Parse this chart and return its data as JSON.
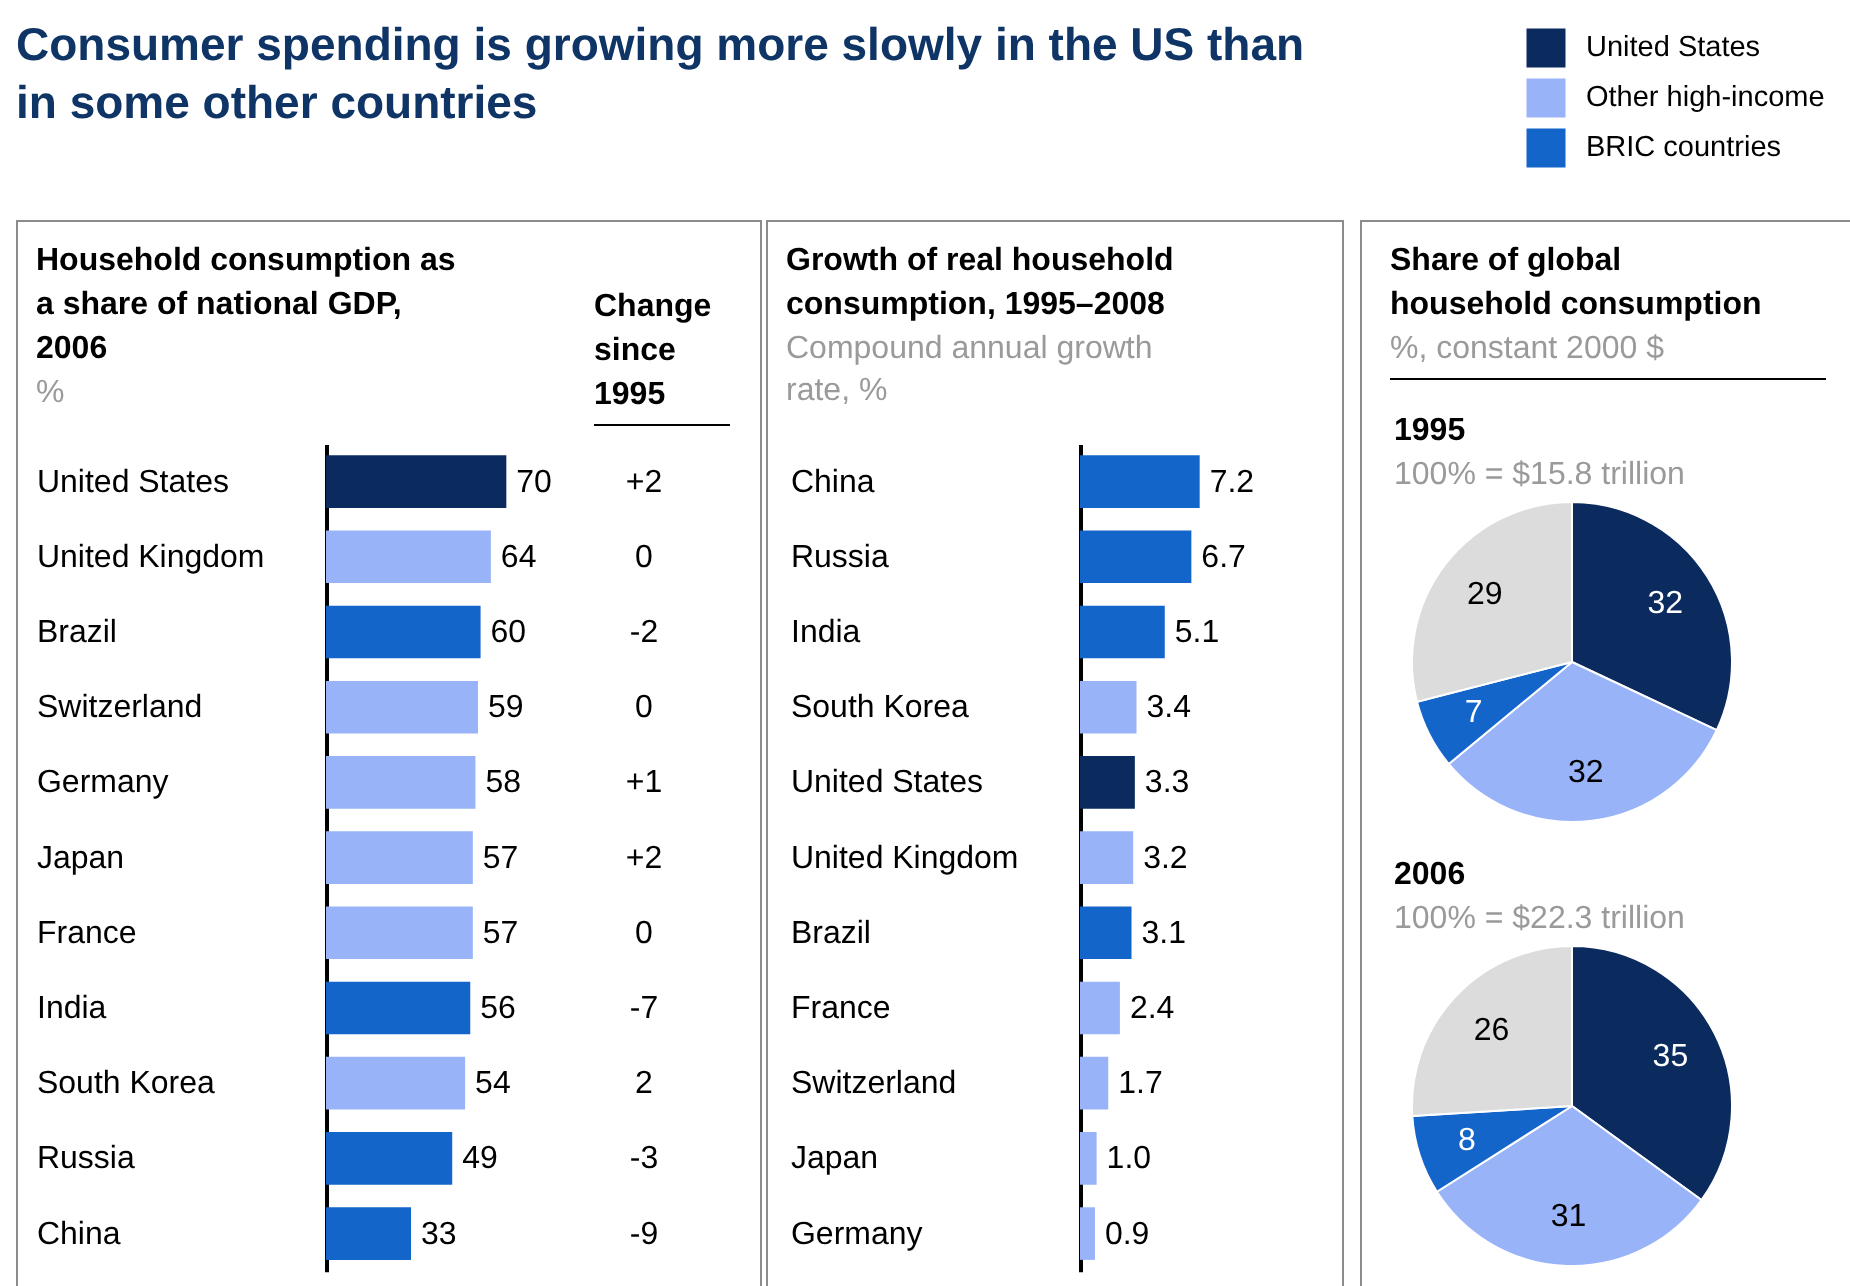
{
  "chart_data": [
    {
      "type": "other",
      "title": "Consumer spending is growing more slowly in the US than in some other countries"
    },
    {
      "type": "bar",
      "orientation": "horizontal",
      "title": "Household consumption as a share of national GDP, 2006",
      "subtitle": "%",
      "categories": [
        "United States",
        "United Kingdom",
        "Brazil",
        "Switzerland",
        "Germany",
        "Japan",
        "France",
        "India",
        "South Korea",
        "Russia",
        "China"
      ],
      "values": [
        70,
        64,
        60,
        59,
        58,
        57,
        57,
        56,
        54,
        49,
        33
      ],
      "colors": [
        "#0b2a5e",
        "#99b3f9",
        "#1465c9",
        "#99b3f9",
        "#99b3f9",
        "#99b3f9",
        "#99b3f9",
        "#1465c9",
        "#99b3f9",
        "#1465c9",
        "#1465c9"
      ],
      "data_labels": true,
      "annotations": [
        "Change since 1995",
        "+2",
        "0",
        "-2",
        "0",
        "+1",
        "+2",
        "0",
        "-7",
        "2",
        "-3",
        "-9"
      ]
    },
    {
      "type": "bar",
      "orientation": "horizontal",
      "title": "Growth of real household consumption, 1995–2008",
      "subtitle": "Compound annual growth rate, %",
      "categories": [
        "China",
        "Russia",
        "India",
        "South Korea",
        "United States",
        "United Kingdom",
        "Brazil",
        "France",
        "Switzerland",
        "Japan",
        "Germany"
      ],
      "values": [
        7.2,
        6.7,
        5.1,
        3.4,
        3.3,
        3.2,
        3.1,
        2.4,
        1.7,
        1.0,
        0.9
      ],
      "colors": [
        "#1465c9",
        "#1465c9",
        "#1465c9",
        "#99b3f9",
        "#0b2a5e",
        "#99b3f9",
        "#1465c9",
        "#99b3f9",
        "#99b3f9",
        "#99b3f9",
        "#99b3f9"
      ],
      "value_labels": [
        "7.2",
        "6.7",
        "5.1",
        "3.4",
        "3.3",
        "3.2",
        "3.1",
        "2.4",
        "1.7",
        "1.0",
        "0.9"
      ]
    },
    {
      "type": "other",
      "title": "Share of global household consumption",
      "subtitle": "%, constant 2000 $"
    },
    {
      "type": "pie",
      "title": "1995",
      "subtitle": "100% = $15.8 trillion",
      "categories": [
        "United States",
        "Other high-income",
        "BRIC countries",
        null
      ],
      "values": [
        32,
        32,
        7,
        29
      ],
      "colors": [
        "#0b2a5e",
        "#99b3f9",
        "#1465c9",
        "#dcdcdc"
      ],
      "data_labels": true,
      "legend": "top right"
    },
    {
      "type": "pie",
      "title": "2006",
      "subtitle": "100% = $22.3 trillion",
      "categories": [
        null,
        null,
        null,
        null
      ],
      "values": [
        35,
        31,
        8,
        26
      ],
      "colors": [
        "#0b2a5e",
        "#99b3f9",
        "#1465c9",
        "#dcdcdc"
      ],
      "data_labels": true
    }
  ]
}
